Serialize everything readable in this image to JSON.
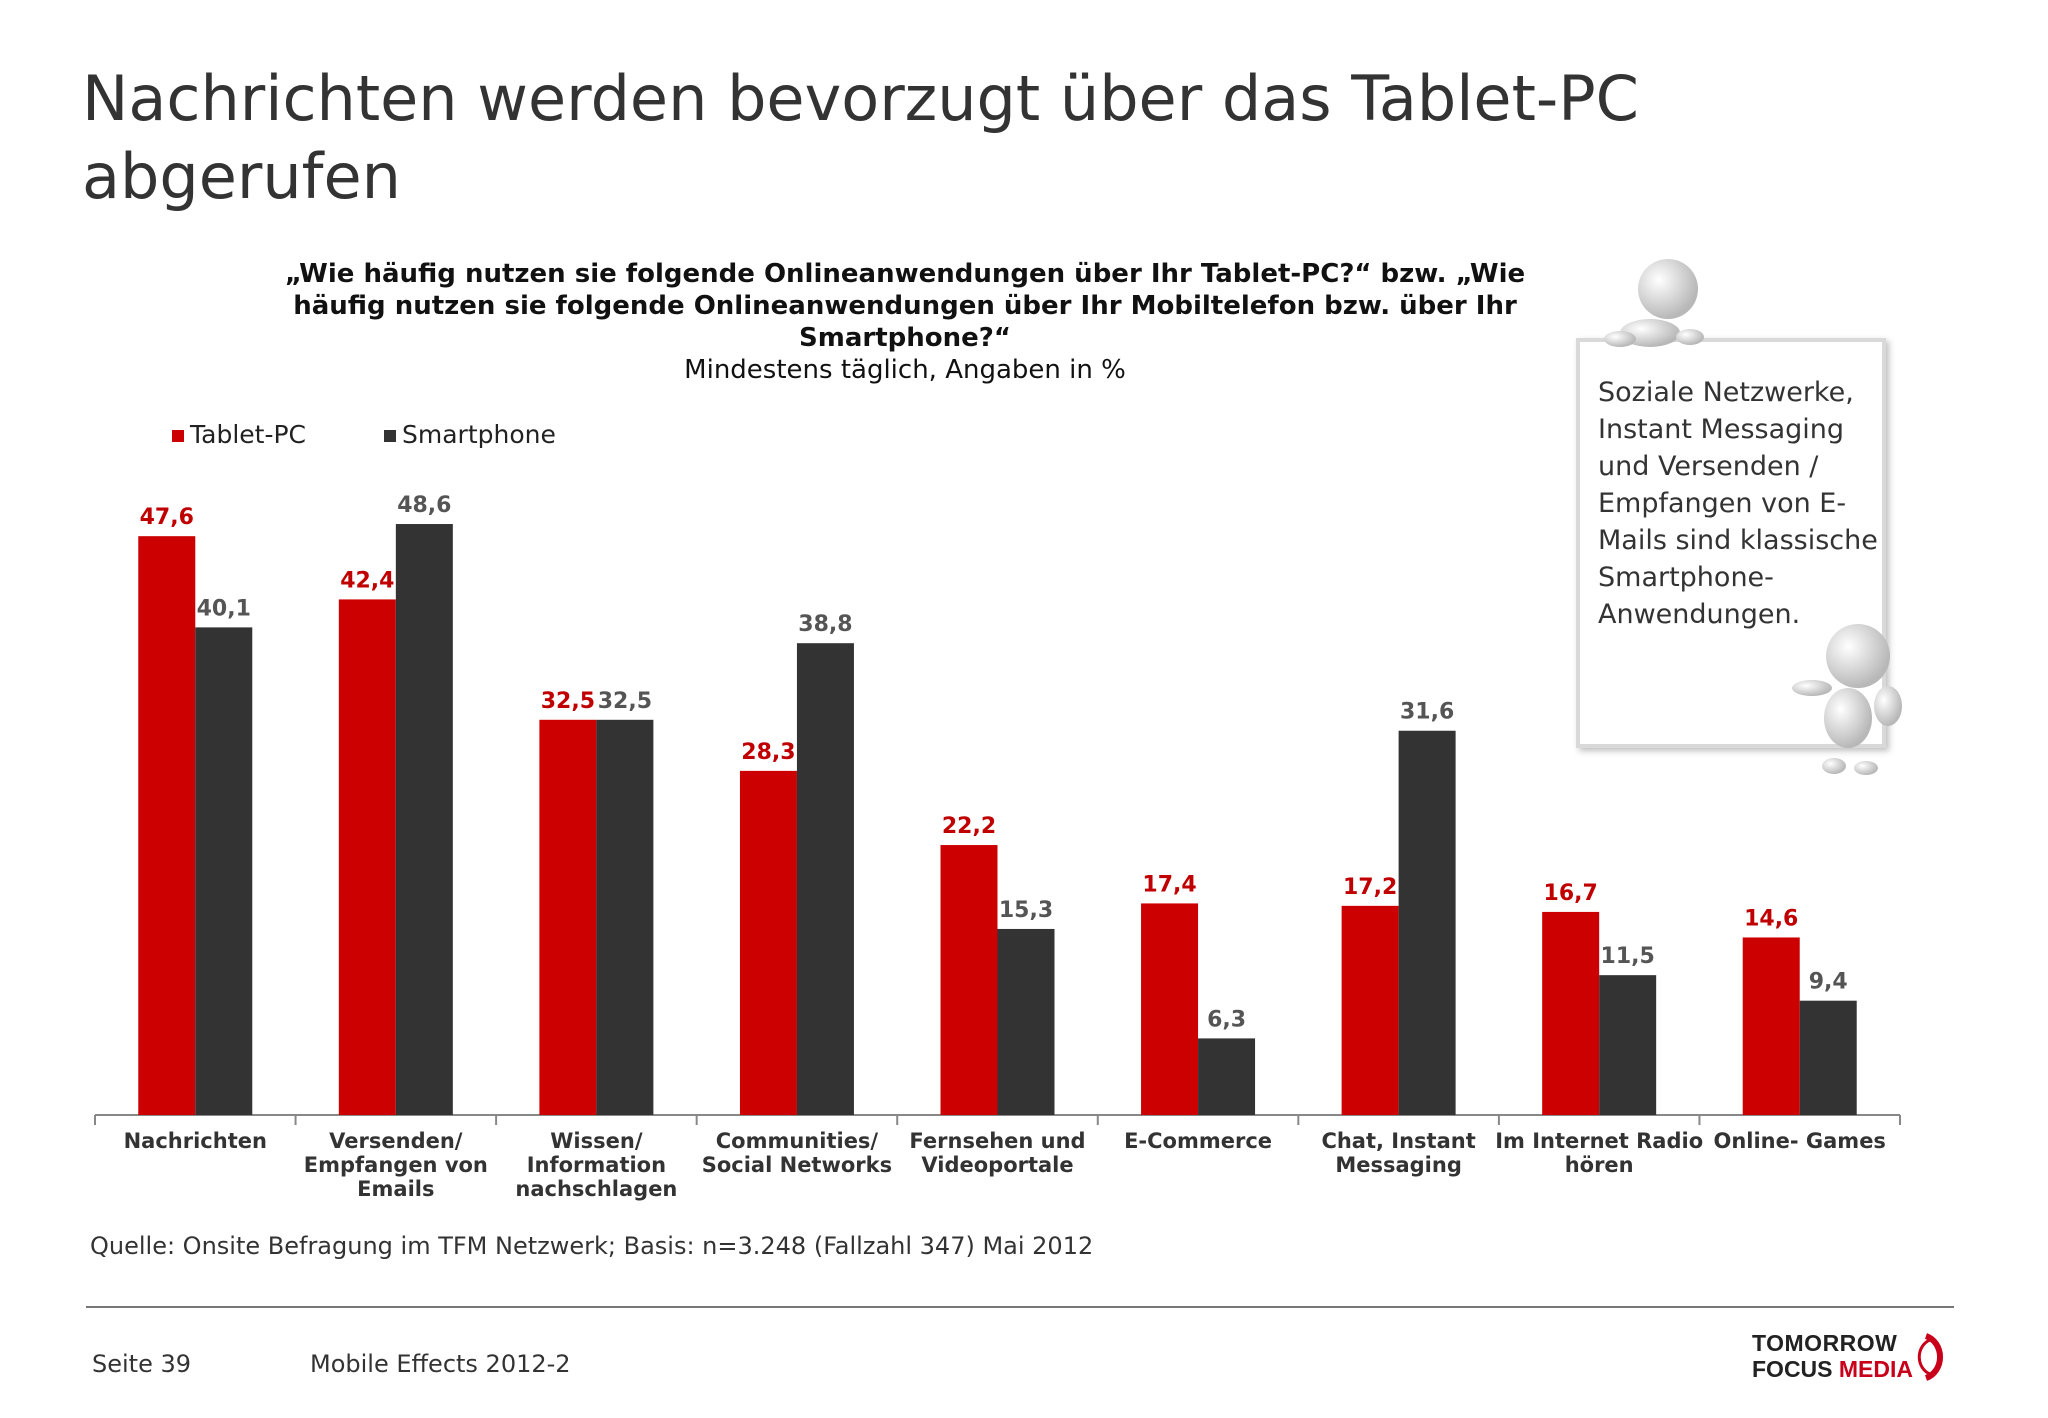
{
  "title": "Nachrichten werden bevorzugt über das Tablet-PC abgerufen",
  "question": "„Wie häufig nutzen sie folgende Onlineanwendungen über Ihr Tablet-PC?“ bzw. „Wie häufig nutzen sie folgende Onlineanwendungen über Ihr Mobiltelefon bzw. über Ihr Smartphone?“",
  "subtitle": "Mindestens täglich, Angaben in %",
  "callout": "Soziale Netzwerke, Instant Messaging und Versenden / Empfangen von E-Mails sind klassische Smartphone-Anwendungen.",
  "source": "Quelle: Onsite Befragung im TFM Netzwerk; Basis: n=3.248 (Fallzahl 347) Mai 2012",
  "footer": {
    "page": "Seite 39",
    "study": "Mobile Effects 2012-2"
  },
  "logo": {
    "line1": "TOMORROW",
    "line2a": "FOCUS",
    "line2b": "MEDIA"
  },
  "colors": {
    "tablet": "#cc0000",
    "smartphone": "#333333",
    "axis": "#888888"
  },
  "chart_data": {
    "type": "bar",
    "categories": [
      "Nachrichten",
      "Versenden/ Empfangen von Emails",
      "Wissen/ Information nachschlagen",
      "Communities/ Social Networks",
      "Fernsehen und Videoportale",
      "E-Commerce",
      "Chat, Instant Messaging",
      "Im Internet Radio hören",
      "Online- Games"
    ],
    "series": [
      {
        "name": "Tablet-PC",
        "values": [
          47.6,
          42.4,
          32.5,
          28.3,
          22.2,
          17.4,
          17.2,
          16.7,
          14.6
        ]
      },
      {
        "name": "Smartphone",
        "values": [
          40.1,
          48.6,
          32.5,
          38.8,
          15.3,
          6.3,
          31.6,
          11.5,
          9.4
        ]
      }
    ],
    "title": "",
    "xlabel": "",
    "ylabel": "",
    "ylim": [
      0,
      50
    ],
    "grid": false,
    "legend": "top-left",
    "data_labels": true,
    "decimal_separator": ","
  }
}
